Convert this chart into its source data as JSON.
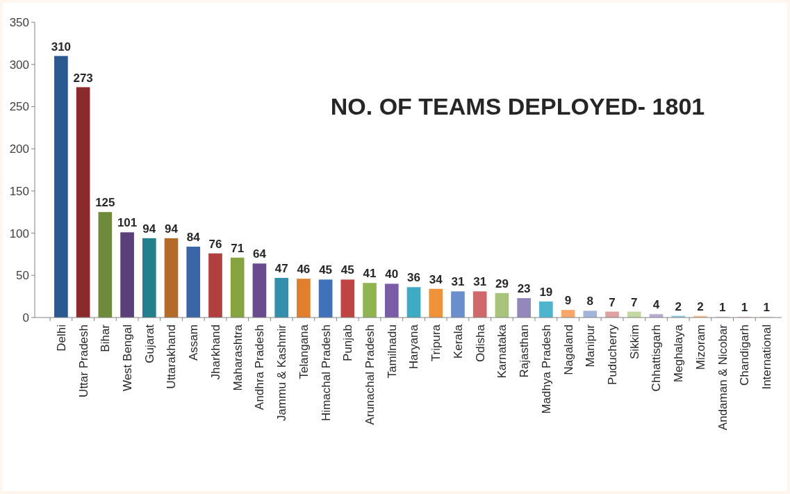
{
  "chart_data": {
    "type": "bar",
    "title": "NO. OF TEAMS DEPLOYED- 1801",
    "categories": [
      "Delhi",
      "Uttar Pradesh",
      "Bihar",
      "West Bengal",
      "Gujarat",
      "Uttarakhand",
      "Assam",
      "Jharkhand",
      "Maharashtra",
      "Andhra Pradesh",
      "Jammu & Kashmir",
      "Telangana",
      "Himachal Pradesh",
      "Punjab",
      "Arunachal Pradesh",
      "Tamilnadu",
      "Haryana",
      "Tripura",
      "Kerala",
      "Odisha",
      "Karnataka",
      "Rajasthan",
      "Madhya Pradesh",
      "Nagaland",
      "Manipur",
      "Puducherry",
      "Sikkim",
      "Chhattisgarh",
      "Meghalaya",
      "Mizoram",
      "Andaman & Nicobar",
      "Chandigarh",
      "International"
    ],
    "values": [
      310,
      273,
      125,
      101,
      94,
      94,
      84,
      76,
      71,
      64,
      47,
      46,
      45,
      45,
      41,
      40,
      36,
      34,
      31,
      31,
      29,
      23,
      19,
      9,
      8,
      7,
      7,
      4,
      2,
      2,
      1,
      1,
      1
    ],
    "colors": [
      "#2a5a8f",
      "#8b2a2a",
      "#6d8b3a",
      "#5a3f7a",
      "#237f8c",
      "#b36a2a",
      "#3a66a8",
      "#b0403e",
      "#86a440",
      "#6a4b8e",
      "#3390ad",
      "#e07f2d",
      "#3f72b8",
      "#c04444",
      "#90b450",
      "#7a5ca8",
      "#3eaac4",
      "#f0923a",
      "#6b8fcc",
      "#d06a6a",
      "#a8c47a",
      "#9488bb",
      "#4fb5cf",
      "#f7a868",
      "#a3b4da",
      "#dea0a0",
      "#c4d8a4",
      "#b6aad0",
      "#8ccbdc",
      "#f7c49a",
      "#c8d0e6",
      "#e8c4c4",
      "#d8e4c8"
    ],
    "ylim": [
      0,
      350
    ],
    "yticks": [
      0,
      50,
      100,
      150,
      200,
      250,
      300,
      350
    ],
    "grid": false,
    "data_labels": true
  }
}
